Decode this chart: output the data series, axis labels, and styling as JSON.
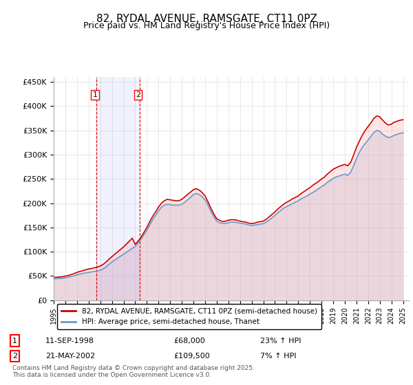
{
  "title": "82, RYDAL AVENUE, RAMSGATE, CT11 0PZ",
  "subtitle": "Price paid vs. HM Land Registry's House Price Index (HPI)",
  "ylabel_ticks": [
    "£0",
    "£50K",
    "£100K",
    "£150K",
    "£200K",
    "£250K",
    "£300K",
    "£350K",
    "£400K",
    "£450K"
  ],
  "ytick_values": [
    0,
    50000,
    100000,
    150000,
    200000,
    250000,
    300000,
    350000,
    400000,
    450000
  ],
  "ylim": [
    0,
    460000
  ],
  "xlim_start": 1995.0,
  "xlim_end": 2025.5,
  "red_line_color": "#cc0000",
  "blue_line_color": "#6699cc",
  "blue_fill_color": "#aabbdd",
  "red_fill_color": "#ffaaaa",
  "grid_color": "#dddddd",
  "background_color": "#ffffff",
  "legend_label_red": "82, RYDAL AVENUE, RAMSGATE, CT11 0PZ (semi-detached house)",
  "legend_label_blue": "HPI: Average price, semi-detached house, Thanet",
  "transaction1_label": "1",
  "transaction1_date": "11-SEP-1998",
  "transaction1_price": "£68,000",
  "transaction1_hpi": "23% ↑ HPI",
  "transaction1_x": 1998.69,
  "transaction1_y": 68000,
  "transaction2_label": "2",
  "transaction2_date": "21-MAY-2002",
  "transaction2_price": "£109,500",
  "transaction2_hpi": "7% ↑ HPI",
  "transaction2_x": 2002.38,
  "transaction2_y": 109500,
  "footnote": "Contains HM Land Registry data © Crown copyright and database right 2025.\nThis data is licensed under the Open Government Licence v3.0.",
  "hpi_years": [
    1995.0,
    1995.25,
    1995.5,
    1995.75,
    1996.0,
    1996.25,
    1996.5,
    1996.75,
    1997.0,
    1997.25,
    1997.5,
    1997.75,
    1998.0,
    1998.25,
    1998.5,
    1998.75,
    1999.0,
    1999.25,
    1999.5,
    1999.75,
    2000.0,
    2000.25,
    2000.5,
    2000.75,
    2001.0,
    2001.25,
    2001.5,
    2001.75,
    2002.0,
    2002.25,
    2002.5,
    2002.75,
    2003.0,
    2003.25,
    2003.5,
    2003.75,
    2004.0,
    2004.25,
    2004.5,
    2004.75,
    2005.0,
    2005.25,
    2005.5,
    2005.75,
    2006.0,
    2006.25,
    2006.5,
    2006.75,
    2007.0,
    2007.25,
    2007.5,
    2007.75,
    2008.0,
    2008.25,
    2008.5,
    2008.75,
    2009.0,
    2009.25,
    2009.5,
    2009.75,
    2010.0,
    2010.25,
    2010.5,
    2010.75,
    2011.0,
    2011.25,
    2011.5,
    2011.75,
    2012.0,
    2012.25,
    2012.5,
    2012.75,
    2013.0,
    2013.25,
    2013.5,
    2013.75,
    2014.0,
    2014.25,
    2014.5,
    2014.75,
    2015.0,
    2015.25,
    2015.5,
    2015.75,
    2016.0,
    2016.25,
    2016.5,
    2016.75,
    2017.0,
    2017.25,
    2017.5,
    2017.75,
    2018.0,
    2018.25,
    2018.5,
    2018.75,
    2019.0,
    2019.25,
    2019.5,
    2019.75,
    2020.0,
    2020.25,
    2020.5,
    2020.75,
    2021.0,
    2021.25,
    2021.5,
    2021.75,
    2022.0,
    2022.25,
    2022.5,
    2022.75,
    2023.0,
    2023.25,
    2023.5,
    2023.75,
    2024.0,
    2024.25,
    2024.5,
    2024.75,
    2025.0
  ],
  "hpi_values": [
    44000,
    44500,
    45000,
    45500,
    46500,
    47500,
    49000,
    50500,
    52500,
    54000,
    55500,
    56500,
    57500,
    58500,
    59500,
    60500,
    62000,
    65000,
    69000,
    74000,
    79000,
    83000,
    87000,
    91000,
    95000,
    99000,
    103000,
    107000,
    111000,
    118000,
    126000,
    135000,
    144000,
    155000,
    166000,
    175000,
    184000,
    192000,
    196000,
    198000,
    197000,
    196000,
    196000,
    196000,
    198000,
    202000,
    207000,
    212000,
    218000,
    220000,
    218000,
    213000,
    207000,
    196000,
    183000,
    172000,
    163000,
    160000,
    158000,
    158000,
    160000,
    161000,
    161000,
    160000,
    159000,
    158000,
    157000,
    155000,
    154000,
    155000,
    156000,
    157000,
    158000,
    161000,
    165000,
    170000,
    175000,
    180000,
    185000,
    190000,
    193000,
    196000,
    199000,
    202000,
    205000,
    209000,
    212000,
    215000,
    219000,
    222000,
    226000,
    230000,
    234000,
    238000,
    243000,
    247000,
    251000,
    254000,
    256000,
    258000,
    260000,
    257000,
    264000,
    277000,
    292000,
    305000,
    315000,
    323000,
    330000,
    338000,
    346000,
    350000,
    348000,
    342000,
    338000,
    335000,
    337000,
    340000,
    342000,
    344000,
    345000
  ],
  "red_years": [
    1995.0,
    1995.25,
    1995.5,
    1995.75,
    1996.0,
    1996.25,
    1996.5,
    1996.75,
    1997.0,
    1997.25,
    1997.5,
    1997.75,
    1998.0,
    1998.25,
    1998.5,
    1998.75,
    1999.0,
    1999.25,
    1999.5,
    1999.75,
    2000.0,
    2000.25,
    2000.5,
    2000.75,
    2001.0,
    2001.25,
    2001.5,
    2001.75,
    2002.0,
    2002.25,
    2002.5,
    2002.75,
    2003.0,
    2003.25,
    2003.5,
    2003.75,
    2004.0,
    2004.25,
    2004.5,
    2004.75,
    2005.0,
    2005.25,
    2005.5,
    2005.75,
    2006.0,
    2006.25,
    2006.5,
    2006.75,
    2007.0,
    2007.25,
    2007.5,
    2007.75,
    2008.0,
    2008.25,
    2008.5,
    2008.75,
    2009.0,
    2009.25,
    2009.5,
    2009.75,
    2010.0,
    2010.25,
    2010.5,
    2010.75,
    2011.0,
    2011.25,
    2011.5,
    2011.75,
    2012.0,
    2012.25,
    2012.5,
    2012.75,
    2013.0,
    2013.25,
    2013.5,
    2013.75,
    2014.0,
    2014.25,
    2014.5,
    2014.75,
    2015.0,
    2015.25,
    2015.5,
    2015.75,
    2016.0,
    2016.25,
    2016.5,
    2016.75,
    2017.0,
    2017.25,
    2017.5,
    2017.75,
    2018.0,
    2018.25,
    2018.5,
    2018.75,
    2019.0,
    2019.25,
    2019.5,
    2019.75,
    2020.0,
    2020.25,
    2020.5,
    2020.75,
    2021.0,
    2021.25,
    2021.5,
    2021.75,
    2022.0,
    2022.25,
    2022.5,
    2022.75,
    2023.0,
    2023.25,
    2023.5,
    2023.75,
    2024.0,
    2024.25,
    2024.5,
    2024.75,
    2025.0
  ],
  "red_values": [
    47000,
    47500,
    48000,
    48500,
    50000,
    51000,
    53000,
    55000,
    57500,
    59500,
    61000,
    63000,
    64500,
    65500,
    67000,
    68500,
    70500,
    74000,
    79000,
    84500,
    90000,
    95000,
    100000,
    105000,
    110000,
    116000,
    122000,
    128000,
    115000,
    122000,
    130000,
    140000,
    150000,
    162000,
    173000,
    182000,
    192000,
    200000,
    205000,
    208000,
    207000,
    206000,
    205000,
    205000,
    208000,
    213000,
    218000,
    223000,
    228000,
    230000,
    227000,
    222000,
    215000,
    203000,
    190000,
    178000,
    168000,
    165000,
    162000,
    163000,
    165000,
    166000,
    166000,
    165000,
    163000,
    162000,
    161000,
    159000,
    158000,
    159000,
    161000,
    162000,
    163000,
    167000,
    172000,
    177000,
    182000,
    188000,
    193000,
    198000,
    202000,
    205000,
    209000,
    212000,
    215000,
    220000,
    224000,
    228000,
    232000,
    237000,
    241000,
    245000,
    250000,
    254000,
    260000,
    265000,
    270000,
    273000,
    276000,
    278000,
    280000,
    277000,
    284000,
    299000,
    315000,
    328000,
    340000,
    350000,
    358000,
    366000,
    375000,
    380000,
    378000,
    371000,
    365000,
    361000,
    363000,
    367000,
    369000,
    371000,
    372000
  ]
}
